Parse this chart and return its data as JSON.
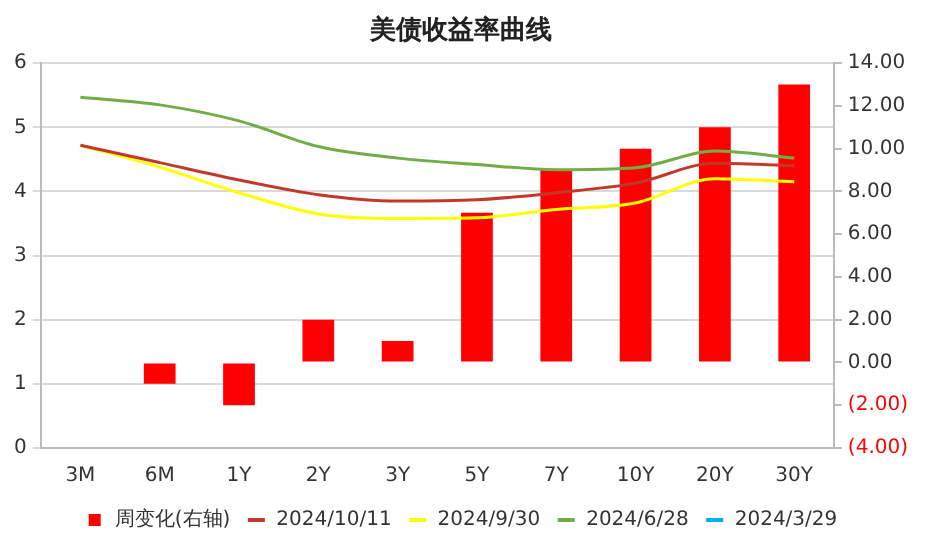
{
  "chart_data": {
    "type": "line",
    "title": "美债收益率曲线",
    "categories": [
      "3M",
      "6M",
      "1Y",
      "2Y",
      "3Y",
      "5Y",
      "7Y",
      "10Y",
      "20Y",
      "30Y"
    ],
    "series": [
      {
        "name": "周变化(右轴)",
        "type": "bar",
        "axis": "y2",
        "color": "#ff0000",
        "values": [
          0,
          -1,
          -2,
          2,
          1,
          7,
          9,
          10,
          11,
          13
        ]
      },
      {
        "name": "2024/10/11",
        "color": "#c0392b",
        "values": [
          4.72,
          4.45,
          4.18,
          3.95,
          3.85,
          3.87,
          3.98,
          4.13,
          4.44,
          4.4
        ]
      },
      {
        "name": "2024/9/30",
        "color": "#ffff00",
        "values": [
          4.72,
          4.38,
          3.98,
          3.65,
          3.58,
          3.59,
          3.72,
          3.82,
          4.2,
          4.15
        ]
      },
      {
        "name": "2024/6/28",
        "color": "#70ad47",
        "values": [
          5.47,
          5.35,
          5.1,
          4.7,
          4.52,
          4.42,
          4.34,
          4.37,
          4.63,
          4.52
        ]
      },
      {
        "name": "2024/3/29",
        "color": "#00b0f0",
        "values": [
          null,
          null,
          null,
          null,
          null,
          null,
          null,
          null,
          null,
          null
        ]
      }
    ],
    "ylim": [
      0,
      6
    ],
    "yticks": [
      0,
      1,
      2,
      3,
      4,
      5,
      6
    ],
    "y2lim": [
      -4,
      14
    ],
    "y2ticks": [
      {
        "value": -4,
        "label": "(4.00)"
      },
      {
        "value": -2,
        "label": "(2.00)"
      },
      {
        "value": 0,
        "label": "0.00"
      },
      {
        "value": 2,
        "label": "2.00"
      },
      {
        "value": 4,
        "label": "4.00"
      },
      {
        "value": 6,
        "label": "6.00"
      },
      {
        "value": 8,
        "label": "8.00"
      },
      {
        "value": 10,
        "label": "10.00"
      },
      {
        "value": 12,
        "label": "12.00"
      },
      {
        "value": 14,
        "label": "14.00"
      }
    ],
    "grid": "y",
    "legend": "bottom",
    "marker": "none",
    "line_style": "solid"
  }
}
